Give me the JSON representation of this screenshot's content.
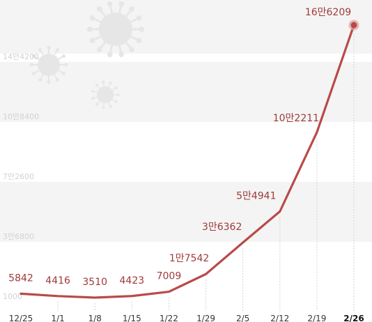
{
  "chart_data": {
    "type": "line",
    "title": "",
    "xlabel": "",
    "ylabel": "",
    "categories": [
      "12/25",
      "1/1",
      "1/8",
      "1/15",
      "1/22",
      "1/29",
      "2/5",
      "2/12",
      "2/19",
      "2/26"
    ],
    "series": [
      {
        "values": [
          5842,
          4416,
          3510,
          4423,
          7009,
          17542,
          36362,
          54941,
          102211,
          166209
        ],
        "data_labels": [
          "5842",
          "4416",
          "3510",
          "4423",
          "7009",
          "1만7542",
          "3만6362",
          "5만4941",
          "10만2211",
          "16만6209"
        ]
      }
    ],
    "y_ticks": [
      {
        "value": 1000,
        "label": "1000"
      },
      {
        "value": 36800,
        "label": "3만6800"
      },
      {
        "value": 72600,
        "label": "7만2600"
      },
      {
        "value": 108400,
        "label": "10만8400"
      },
      {
        "value": 144200,
        "label": "14만4200"
      }
    ],
    "ylim": [
      1000,
      180000
    ],
    "grid": true,
    "colors": {
      "line": "#b94a4a",
      "label": "#a03a3a",
      "band": "#f4f4f4",
      "tick": "#d2d2d2",
      "x_tick": "#333333",
      "virus": "#e6e6e6"
    },
    "decorations": [
      "virus-icon",
      "virus-icon",
      "virus-icon"
    ]
  }
}
